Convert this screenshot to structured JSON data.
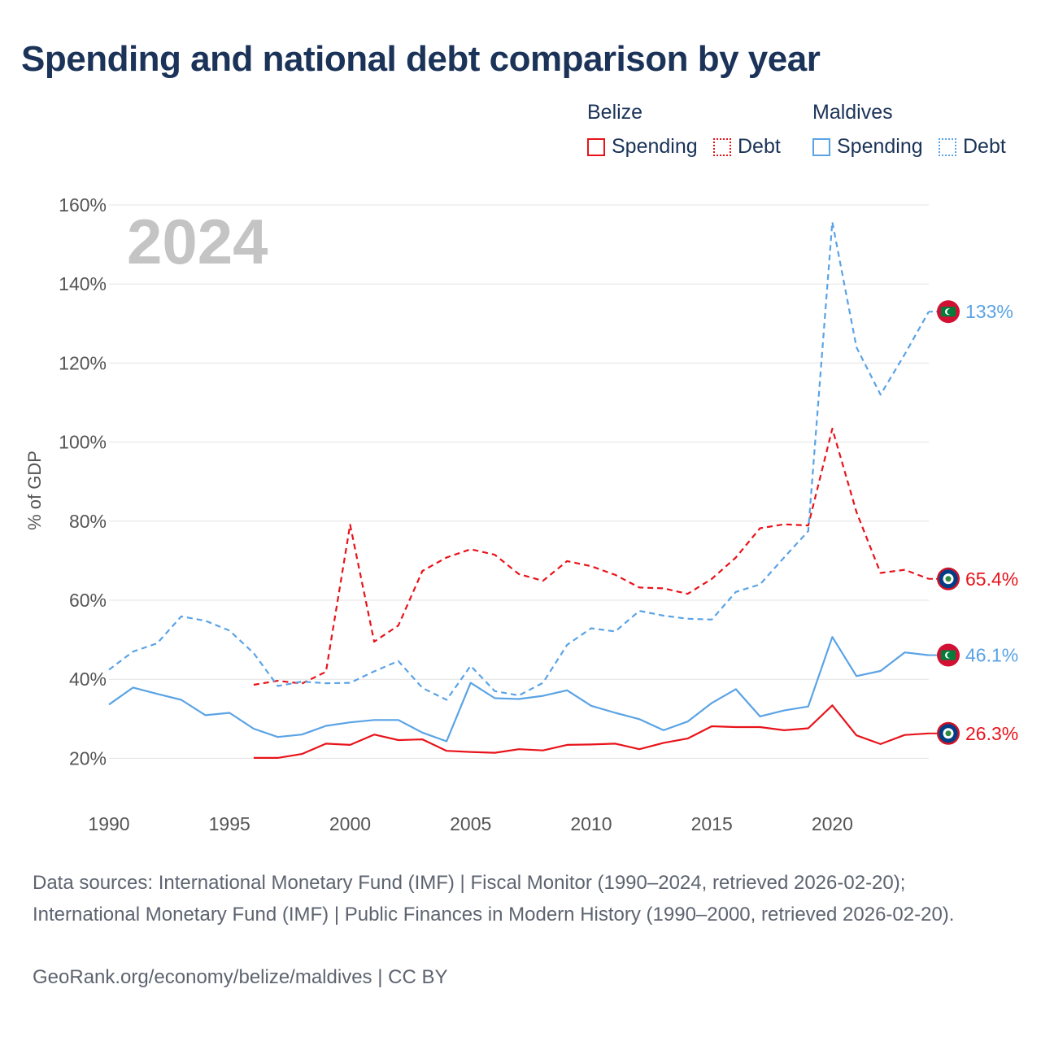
{
  "title": "Spending and national debt comparison by year",
  "legend": {
    "groups": [
      {
        "name": "Belize",
        "items": [
          "Spending",
          "Debt"
        ]
      },
      {
        "name": "Maldives",
        "items": [
          "Spending",
          "Debt"
        ]
      }
    ]
  },
  "footer": {
    "sources": "Data sources: International Monetary Fund (IMF) | Fiscal Monitor (1990–2024, retrieved 2026-02-20); International Monetary Fund (IMF) | Public Finances in Modern History (1990–2000, retrieved 2026-02-20).",
    "credit": "GeoRank.org/economy/belize/maldives | CC BY"
  },
  "colors": {
    "belize": "#e8131a",
    "maldives": "#5aa3e5",
    "grid": "#e3e3e3",
    "axis_text": "#555555",
    "year_watermark": "#c4c4c4"
  },
  "chart_data": {
    "type": "line",
    "year_label": "2024",
    "ylabel": "% of GDP",
    "xlim": [
      1990,
      2024
    ],
    "ylim": [
      10,
      160
    ],
    "x_ticks": [
      1990,
      1995,
      2000,
      2005,
      2010,
      2015,
      2020
    ],
    "y_ticks": [
      20,
      40,
      60,
      80,
      100,
      120,
      140,
      160
    ],
    "y_tick_labels": [
      "20%",
      "40%",
      "60%",
      "80%",
      "100%",
      "120%",
      "140%",
      "160%"
    ],
    "series": [
      {
        "name": "Belize Spending",
        "country": "Belize",
        "metric": "Spending",
        "style": "solid",
        "color": "#e8131a",
        "x": [
          1996,
          1997,
          1998,
          1999,
          2000,
          2001,
          2002,
          2003,
          2004,
          2005,
          2006,
          2007,
          2008,
          2009,
          2010,
          2011,
          2012,
          2013,
          2014,
          2015,
          2016,
          2017,
          2018,
          2019,
          2020,
          2021,
          2022,
          2023,
          2024
        ],
        "values": [
          20.1,
          20.1,
          21.1,
          23.7,
          23.4,
          26.0,
          24.6,
          24.8,
          21.9,
          21.6,
          21.4,
          22.3,
          22.0,
          23.4,
          23.5,
          23.7,
          22.3,
          23.9,
          25.0,
          28.1,
          27.9,
          27.9,
          27.1,
          27.6,
          33.4,
          25.8,
          23.6,
          25.9,
          26.3
        ],
        "end_label": "26.3%"
      },
      {
        "name": "Belize Debt",
        "country": "Belize",
        "metric": "Debt",
        "style": "dashed",
        "color": "#e8131a",
        "x": [
          1996,
          1997,
          1998,
          1999,
          2000,
          2001,
          2002,
          2003,
          2004,
          2005,
          2006,
          2007,
          2008,
          2009,
          2010,
          2011,
          2012,
          2013,
          2014,
          2015,
          2016,
          2017,
          2018,
          2019,
          2020,
          2021,
          2022,
          2023,
          2024
        ],
        "values": [
          38.6,
          39.6,
          38.9,
          41.9,
          79.1,
          49.5,
          53.6,
          67.4,
          70.8,
          72.9,
          71.5,
          66.6,
          64.9,
          69.9,
          68.6,
          66.4,
          63.2,
          63.0,
          61.6,
          65.4,
          70.8,
          78.2,
          79.2,
          78.9,
          103.4,
          82.3,
          66.9,
          67.7,
          65.4
        ],
        "end_label": "65.4%"
      },
      {
        "name": "Maldives Spending",
        "country": "Maldives",
        "metric": "Spending",
        "style": "solid",
        "color": "#5aa3e5",
        "x": [
          1990,
          1991,
          1992,
          1993,
          1994,
          1995,
          1996,
          1997,
          1998,
          1999,
          2000,
          2001,
          2002,
          2003,
          2004,
          2005,
          2006,
          2007,
          2008,
          2009,
          2010,
          2011,
          2012,
          2013,
          2014,
          2015,
          2016,
          2017,
          2018,
          2019,
          2020,
          2021,
          2022,
          2023,
          2024
        ],
        "values": [
          33.6,
          37.9,
          36.3,
          34.8,
          30.9,
          31.5,
          27.5,
          25.4,
          26.0,
          28.2,
          29.1,
          29.7,
          29.7,
          26.5,
          24.3,
          39.1,
          35.2,
          35.0,
          35.8,
          37.2,
          33.3,
          31.5,
          29.9,
          27.1,
          29.3,
          34.0,
          37.5,
          30.6,
          32.1,
          33.1,
          50.7,
          40.8,
          42.1,
          46.8,
          46.1
        ],
        "end_label": "46.1%"
      },
      {
        "name": "Maldives Debt",
        "country": "Maldives",
        "metric": "Debt",
        "style": "dashed",
        "color": "#5aa3e5",
        "x": [
          1990,
          1991,
          1992,
          1993,
          1994,
          1995,
          1996,
          1997,
          1998,
          1999,
          2000,
          2001,
          2002,
          2003,
          2004,
          2005,
          2006,
          2007,
          2008,
          2009,
          2010,
          2011,
          2012,
          2013,
          2014,
          2015,
          2016,
          2017,
          2018,
          2019,
          2020,
          2021,
          2022,
          2023,
          2024
        ],
        "values": [
          42.4,
          47.0,
          49.1,
          55.9,
          54.8,
          52.3,
          46.6,
          38.3,
          39.4,
          39.0,
          39.1,
          42.0,
          44.6,
          37.8,
          34.8,
          43.4,
          37.0,
          35.9,
          39.1,
          48.7,
          52.9,
          52.1,
          57.3,
          56.1,
          55.3,
          55.1,
          62.1,
          64.0,
          70.8,
          77.5,
          155.7,
          124.0,
          112.0,
          122.2,
          133.0
        ],
        "end_label": "133%"
      }
    ]
  }
}
